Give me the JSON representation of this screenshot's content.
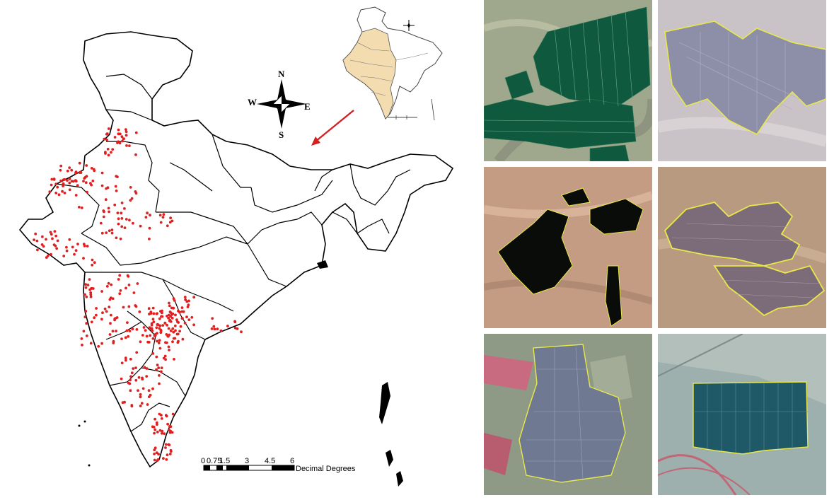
{
  "compass": {
    "north": "N",
    "south": "S",
    "east": "E",
    "west": "W"
  },
  "scale_bar": {
    "ticks": [
      "0",
      "0.75",
      "1.5",
      "3",
      "4.5",
      "6"
    ],
    "unit": "Decimal Degrees"
  },
  "colors": {
    "site_points": "#e02020",
    "locator_fill": "#f3dcb0",
    "boundary": "#000000",
    "arrow": "#d42020",
    "polygon_outline": "#e8e84a"
  },
  "tiles": [
    {
      "id": "tile-1",
      "background": "#9fa88c",
      "panel_fill": "#0f5a3e",
      "outline": "none"
    },
    {
      "id": "tile-2",
      "background": "#c9c2c6",
      "panel_fill": "#8d8ea8",
      "outline": "#e8e84a"
    },
    {
      "id": "tile-3",
      "background": "#c49c84",
      "panel_fill": "#0a0c0a",
      "outline": "#e8e84a"
    },
    {
      "id": "tile-4",
      "background": "#b89a80",
      "panel_fill": "#7c6b78",
      "outline": "#e8e84a"
    },
    {
      "id": "tile-5",
      "background": "#8e9a86",
      "panel_fill": "#6f7a92",
      "outline": "#e8e84a"
    },
    {
      "id": "tile-6",
      "background": "#9eb0ad",
      "panel_fill": "#1f5866",
      "outline": "#e8e84a"
    }
  ]
}
